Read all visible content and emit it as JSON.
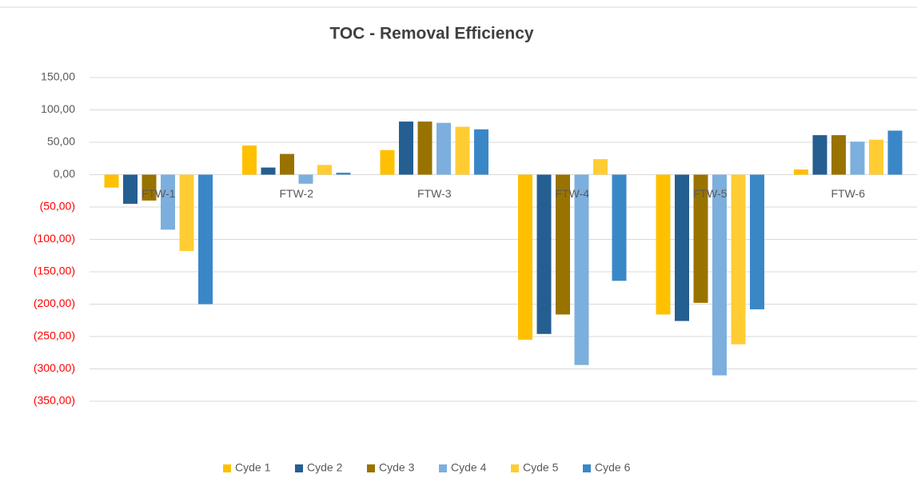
{
  "chart_data": {
    "type": "bar",
    "title": "TOC - Removal Efficiency",
    "categories": [
      "FTW-1",
      "FTW-2",
      "FTW-3",
      "FTW-4",
      "FTW-5",
      "FTW-6"
    ],
    "series": [
      {
        "name": "Cyde 1",
        "color": "#ffc000",
        "values": [
          -20,
          45,
          38,
          -255,
          -216,
          8
        ]
      },
      {
        "name": "Cyde 2",
        "color": "#255e91",
        "values": [
          -45,
          11,
          82,
          -246,
          -226,
          61
        ]
      },
      {
        "name": "Cyde 3",
        "color": "#997300",
        "values": [
          -40,
          32,
          82,
          -216,
          -198,
          61
        ]
      },
      {
        "name": "Cyde 4",
        "color": "#7cafdd",
        "values": [
          -85,
          -14,
          80,
          -294,
          -310,
          51
        ]
      },
      {
        "name": "Cyde 5",
        "color": "#ffcd33",
        "values": [
          -118,
          15,
          74,
          24,
          -262,
          54
        ]
      },
      {
        "name": "Cyde 6",
        "color": "#3a87c8",
        "values": [
          -200,
          3,
          70,
          -164,
          -208,
          68
        ]
      }
    ],
    "ylim": [
      -350,
      150
    ],
    "yticks": [
      {
        "value": 150,
        "label": "150,00"
      },
      {
        "value": 100,
        "label": "100,00"
      },
      {
        "value": 50,
        "label": "50,00"
      },
      {
        "value": 0,
        "label": "0,00"
      },
      {
        "value": -50,
        "label": "(50,00)"
      },
      {
        "value": -100,
        "label": "(100,00)"
      },
      {
        "value": -150,
        "label": "(150,00)"
      },
      {
        "value": -200,
        "label": "(200,00)"
      },
      {
        "value": -250,
        "label": "(250,00)"
      },
      {
        "value": -300,
        "label": "(300,00)"
      },
      {
        "value": -350,
        "label": "(350,00)"
      }
    ],
    "grid": true,
    "negative_tick_label_color": "#ff0000",
    "legend": "bottom"
  }
}
